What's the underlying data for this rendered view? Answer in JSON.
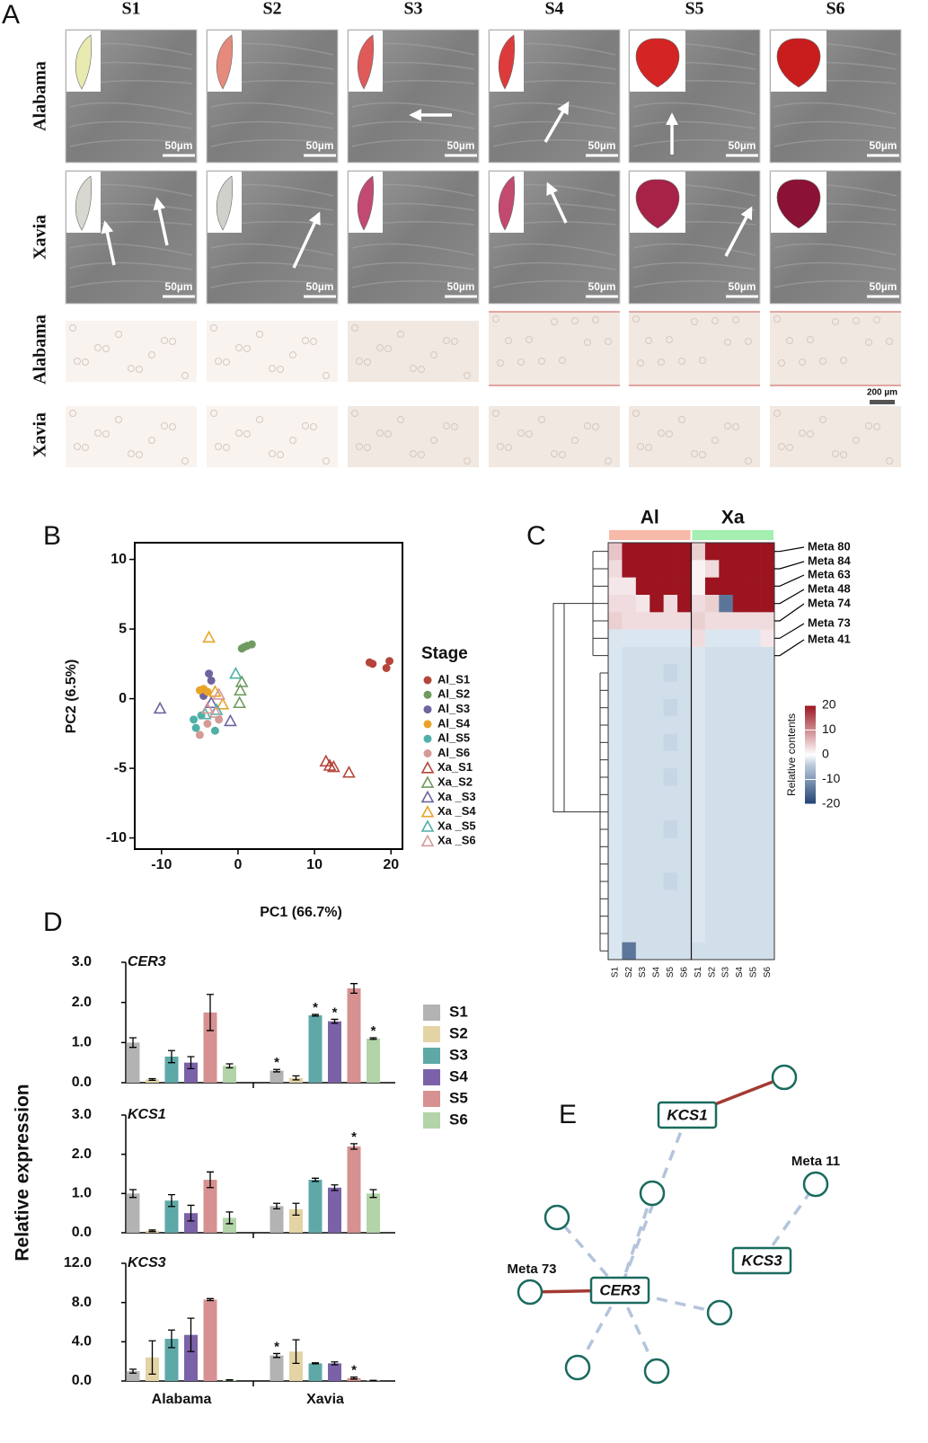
{
  "panel_a": {
    "label": "A",
    "columns": [
      "S1",
      "S2",
      "S3",
      "S4",
      "S5",
      "S6"
    ],
    "rows": [
      "Alabama",
      "Xavia",
      "Alabama",
      "Xavia"
    ],
    "sem_scale": "50µm",
    "section_scale": "200 µm"
  },
  "chart_data": [
    {
      "type": "scatter",
      "label": "B",
      "xlabel": "PC1 (66.7%)",
      "ylabel": "PC2 (6.5%)",
      "legend_title": "Stage",
      "xlim": [
        -13.5,
        21.5
      ],
      "ylim": [
        -10.8,
        11.2
      ],
      "xticks": [
        -10,
        0,
        10,
        20
      ],
      "yticks": [
        -10,
        -5,
        0,
        5,
        10
      ],
      "series": [
        {
          "name": "Al_S1",
          "color": "#b5453a",
          "marker": "circle",
          "x": [
            17.2,
            17.6,
            19.8,
            19.4
          ],
          "y": [
            2.6,
            2.5,
            2.7,
            2.2
          ]
        },
        {
          "name": "Al_S2",
          "color": "#6f9a60",
          "marker": "circle",
          "x": [
            0.5,
            1.2,
            1.8,
            0.8
          ],
          "y": [
            3.6,
            3.8,
            3.9,
            3.7
          ]
        },
        {
          "name": "Al_S3",
          "color": "#6f63a0",
          "marker": "circle",
          "x": [
            -3.8,
            -3.5,
            -4.5
          ],
          "y": [
            1.8,
            1.3,
            0.2
          ]
        },
        {
          "name": "Al_S4",
          "color": "#e8a42a",
          "marker": "circle",
          "x": [
            -5,
            -4.5,
            -4
          ],
          "y": [
            0.6,
            0.7,
            0.5
          ]
        },
        {
          "name": "Al_S5",
          "color": "#4fb0a8",
          "marker": "circle",
          "x": [
            -5.8,
            -5.5,
            -3,
            -4.8
          ],
          "y": [
            -1.5,
            -2.1,
            -2.3,
            -1.2
          ]
        },
        {
          "name": "Al_S6",
          "color": "#d49a96",
          "marker": "circle",
          "x": [
            -5,
            -4,
            -2.5
          ],
          "y": [
            -2.6,
            -1.8,
            -1.5
          ]
        },
        {
          "name": "Xa_S1",
          "color": "#b5453a",
          "marker": "triangle",
          "x": [
            11.5,
            12,
            12.5,
            14.5
          ],
          "y": [
            -4.5,
            -4.8,
            -4.9,
            -5.3
          ]
        },
        {
          "name": "Xa_S2",
          "color": "#6f9a60",
          "marker": "triangle",
          "x": [
            0.3,
            0.5,
            0.2
          ],
          "y": [
            0.6,
            1.2,
            -0.3
          ]
        },
        {
          "name": "Xa _S3",
          "color": "#6f63a0",
          "marker": "triangle",
          "x": [
            -10.2,
            -1,
            -3.5
          ],
          "y": [
            -0.7,
            -1.6,
            -0.3
          ]
        },
        {
          "name": "Xa _S4",
          "color": "#e8a42a",
          "marker": "triangle",
          "x": [
            -3.8,
            -2,
            -3
          ],
          "y": [
            4.4,
            -0.4,
            0.5
          ]
        },
        {
          "name": "Xa _S5",
          "color": "#4fb0a8",
          "marker": "triangle",
          "x": [
            -0.3,
            -4.3,
            -2.8
          ],
          "y": [
            1.8,
            -1.1,
            -0.8
          ]
        },
        {
          "name": "Xa _S6",
          "color": "#d49a96",
          "marker": "triangle",
          "x": [
            -2.5,
            -4,
            -2.9
          ],
          "y": [
            0.3,
            -0.7,
            -1.0
          ]
        }
      ]
    },
    {
      "type": "heatmap",
      "label": "C",
      "groups": [
        "Al",
        "Xa"
      ],
      "group_colors": [
        "#f7b9a8",
        "#a3eeb0"
      ],
      "columns": [
        "S1",
        "S2",
        "S3",
        "S4",
        "S5",
        "S6",
        "S1",
        "S2",
        "S3",
        "S4",
        "S5",
        "S6"
      ],
      "row_labels": [
        "Meta 80",
        "Meta 84",
        "Meta 63",
        "Meta 48",
        "Meta 74",
        "Meta 73",
        "Meta 41",
        null,
        null,
        null,
        null,
        null,
        null,
        null,
        null,
        null,
        null,
        null,
        null,
        null,
        null,
        null,
        null,
        null
      ],
      "values": [
        [
          5,
          20,
          20,
          20,
          20,
          20,
          4,
          20,
          20,
          20,
          20,
          20
        ],
        [
          3,
          20,
          20,
          20,
          20,
          20,
          1,
          3,
          20,
          20,
          20,
          20
        ],
        [
          2,
          2,
          20,
          20,
          20,
          20,
          1,
          20,
          20,
          20,
          20,
          20
        ],
        [
          3,
          3,
          2,
          20,
          3,
          20,
          3,
          4,
          -14,
          20,
          20,
          20
        ],
        [
          4,
          3,
          3,
          3,
          3,
          3,
          4,
          3,
          3,
          3,
          3,
          3
        ],
        [
          -1,
          -1,
          -1,
          -1,
          -1,
          -1,
          3,
          -1,
          -1,
          -1,
          -1,
          2
        ],
        [
          -1,
          -2,
          -2,
          -2,
          -2,
          -2,
          -1,
          -2,
          -2,
          -2,
          -2,
          -2
        ],
        [
          -1,
          -2,
          -2,
          -2,
          -3,
          -2,
          -1,
          -2,
          -2,
          -2,
          -2,
          -2
        ],
        [
          -1,
          -2,
          -2,
          -2,
          -2,
          -2,
          -1,
          -2,
          -2,
          -2,
          -2,
          -2
        ],
        [
          -1,
          -2,
          -2,
          -2,
          -3,
          -2,
          -1,
          -2,
          -2,
          -2,
          -2,
          -2
        ],
        [
          -1,
          -2,
          -2,
          -2,
          -2,
          -2,
          -1,
          -2,
          -2,
          -2,
          -2,
          -2
        ],
        [
          -1,
          -2,
          -2,
          -2,
          -3,
          -2,
          -1,
          -2,
          -2,
          -2,
          -2,
          -2
        ],
        [
          -1,
          -2,
          -2,
          -2,
          -2,
          -2,
          -1,
          -2,
          -2,
          -2,
          -2,
          -2
        ],
        [
          -1,
          -2,
          -2,
          -2,
          -3,
          -2,
          -1,
          -2,
          -2,
          -2,
          -2,
          -2
        ],
        [
          -1,
          -2,
          -2,
          -2,
          -2,
          -2,
          -1,
          -2,
          -2,
          -2,
          -2,
          -2
        ],
        [
          -1,
          -2,
          -2,
          -2,
          -2,
          -2,
          -1,
          -2,
          -2,
          -2,
          -2,
          -2
        ],
        [
          -1,
          -2,
          -2,
          -2,
          -3,
          -2,
          -1,
          -2,
          -2,
          -2,
          -2,
          -2
        ],
        [
          -1,
          -2,
          -2,
          -2,
          -2,
          -2,
          -1,
          -2,
          -2,
          -2,
          -2,
          -2
        ],
        [
          -1,
          -2,
          -2,
          -2,
          -2,
          -2,
          -1,
          -2,
          -2,
          -2,
          -2,
          -2
        ],
        [
          -1,
          -2,
          -2,
          -2,
          -3,
          -2,
          -1,
          -2,
          -2,
          -2,
          -2,
          -2
        ],
        [
          -1,
          -2,
          -2,
          -2,
          -2,
          -2,
          -1,
          -2,
          -2,
          -2,
          -2,
          -2
        ],
        [
          -1,
          -2,
          -2,
          -2,
          -2,
          -2,
          -1,
          -2,
          -2,
          -2,
          -2,
          -2
        ],
        [
          -1,
          -2,
          -2,
          -2,
          -2,
          -2,
          -1,
          -2,
          -2,
          -2,
          -2,
          -2
        ],
        [
          -1,
          -14,
          -2,
          -2,
          -2,
          -2,
          -2,
          -2,
          -2,
          -2,
          -2,
          -2
        ]
      ],
      "clim": [
        -20,
        20
      ],
      "colorbar_ticks": [
        20,
        10,
        0,
        -10,
        -20
      ],
      "colorbar_label": "Relative contents"
    },
    {
      "type": "bar",
      "label": "D",
      "ylabel": "Relative expression",
      "categories": [
        "Alabama",
        "Xavia"
      ],
      "legend": [
        {
          "name": "S1",
          "color": "#b3b3b3"
        },
        {
          "name": "S2",
          "color": "#e3d3a5"
        },
        {
          "name": "S3",
          "color": "#5fa8a8"
        },
        {
          "name": "S4",
          "color": "#7b62a8"
        },
        {
          "name": "S5",
          "color": "#d69190"
        },
        {
          "name": "S6",
          "color": "#b3d4a9"
        }
      ],
      "panels": [
        {
          "title": "CER3",
          "ylim": [
            0,
            3
          ],
          "yticks": [
            {
              "value": 0,
              "label": "0.0"
            },
            {
              "value": 1,
              "label": "1.0"
            },
            {
              "value": 2,
              "label": "2.0"
            },
            {
              "value": 3,
              "label": "3.0"
            }
          ],
          "series": [
            {
              "values": [
                1.0,
                0.3
              ],
              "errors": [
                0.12,
                0.03
              ],
              "annotations": [
                null,
                "*"
              ]
            },
            {
              "values": [
                0.08,
                0.12
              ],
              "errors": [
                0.02,
                0.05
              ],
              "annotations": [
                null,
                null
              ]
            },
            {
              "values": [
                0.65,
                1.68
              ],
              "errors": [
                0.15,
                0.02
              ],
              "annotations": [
                null,
                "*"
              ]
            },
            {
              "values": [
                0.5,
                1.53
              ],
              "errors": [
                0.15,
                0.05
              ],
              "annotations": [
                null,
                "*"
              ]
            },
            {
              "values": [
                1.75,
                2.35
              ],
              "errors": [
                0.45,
                0.12
              ],
              "annotations": [
                null,
                null
              ]
            },
            {
              "values": [
                0.42,
                1.1
              ],
              "errors": [
                0.05,
                0.02
              ],
              "annotations": [
                null,
                "*"
              ]
            }
          ]
        },
        {
          "title": "KCS1",
          "ylim": [
            0,
            3
          ],
          "yticks": [
            {
              "value": 0,
              "label": "0.0"
            },
            {
              "value": 1,
              "label": "1.0"
            },
            {
              "value": 2,
              "label": "2.0"
            },
            {
              "value": 3,
              "label": "3.0"
            }
          ],
          "series": [
            {
              "values": [
                1.0,
                0.68
              ],
              "errors": [
                0.1,
                0.07
              ],
              "annotations": [
                null,
                null
              ]
            },
            {
              "values": [
                0.05,
                0.6
              ],
              "errors": [
                0.02,
                0.15
              ],
              "annotations": [
                null,
                null
              ]
            },
            {
              "values": [
                0.82,
                1.35
              ],
              "errors": [
                0.15,
                0.04
              ],
              "annotations": [
                null,
                null
              ]
            },
            {
              "values": [
                0.5,
                1.15
              ],
              "errors": [
                0.2,
                0.07
              ],
              "annotations": [
                null,
                null
              ]
            },
            {
              "values": [
                1.35,
                2.2
              ],
              "errors": [
                0.2,
                0.07
              ],
              "annotations": [
                null,
                "*"
              ]
            },
            {
              "values": [
                0.38,
                1.0
              ],
              "errors": [
                0.15,
                0.1
              ],
              "annotations": [
                null,
                null
              ]
            }
          ]
        },
        {
          "title": "KCS3",
          "ylim": [
            0,
            12
          ],
          "yticks": [
            {
              "value": 0,
              "label": "0.0"
            },
            {
              "value": 4,
              "label": "4.0"
            },
            {
              "value": 8,
              "label": "8.0"
            },
            {
              "value": 12,
              "label": "12.0"
            }
          ],
          "series": [
            {
              "values": [
                1.0,
                2.6
              ],
              "errors": [
                0.2,
                0.2
              ],
              "annotations": [
                null,
                "*"
              ]
            },
            {
              "values": [
                2.4,
                3.0
              ],
              "errors": [
                1.7,
                1.2
              ],
              "annotations": [
                null,
                null
              ]
            },
            {
              "values": [
                4.3,
                1.8
              ],
              "errors": [
                0.9,
                0.05
              ],
              "annotations": [
                null,
                null
              ]
            },
            {
              "values": [
                4.7,
                1.8
              ],
              "errors": [
                1.7,
                0.15
              ],
              "annotations": [
                null,
                null
              ]
            },
            {
              "values": [
                8.3,
                0.3
              ],
              "errors": [
                0.1,
                0.1
              ],
              "annotations": [
                null,
                "*"
              ]
            },
            {
              "values": [
                0.1,
                0.05
              ],
              "errors": [
                0.02,
                0.02
              ],
              "annotations": [
                null,
                null
              ]
            }
          ]
        }
      ]
    }
  ],
  "network": {
    "label": "E",
    "nodes": [
      {
        "label": "KCS1",
        "kind": "gene"
      },
      {
        "label": "CER3",
        "kind": "gene"
      },
      {
        "label": "KCS3",
        "kind": "gene"
      },
      {
        "label": null,
        "kind": "metabolite"
      },
      {
        "label": null,
        "kind": "metabolite"
      },
      {
        "label": null,
        "kind": "metabolite"
      },
      {
        "label": "Meta 73",
        "kind": "metabolite"
      },
      {
        "label": null,
        "kind": "metabolite"
      },
      {
        "label": null,
        "kind": "metabolite"
      },
      {
        "label": null,
        "kind": "metabolite"
      },
      {
        "label": "Meta 11",
        "kind": "metabolite"
      }
    ],
    "edges": [
      {
        "source": 0,
        "target": 3,
        "style": "solid"
      },
      {
        "source": 0,
        "target": 1,
        "style": "dashed"
      },
      {
        "source": 1,
        "target": 4,
        "style": "dashed"
      },
      {
        "source": 1,
        "target": 5,
        "style": "dashed"
      },
      {
        "source": 1,
        "target": 6,
        "style": "solid"
      },
      {
        "source": 1,
        "target": 7,
        "style": "dashed"
      },
      {
        "source": 1,
        "target": 8,
        "style": "dashed"
      },
      {
        "source": 1,
        "target": 9,
        "style": "dashed"
      },
      {
        "source": 2,
        "target": 10,
        "style": "dashed"
      }
    ]
  }
}
